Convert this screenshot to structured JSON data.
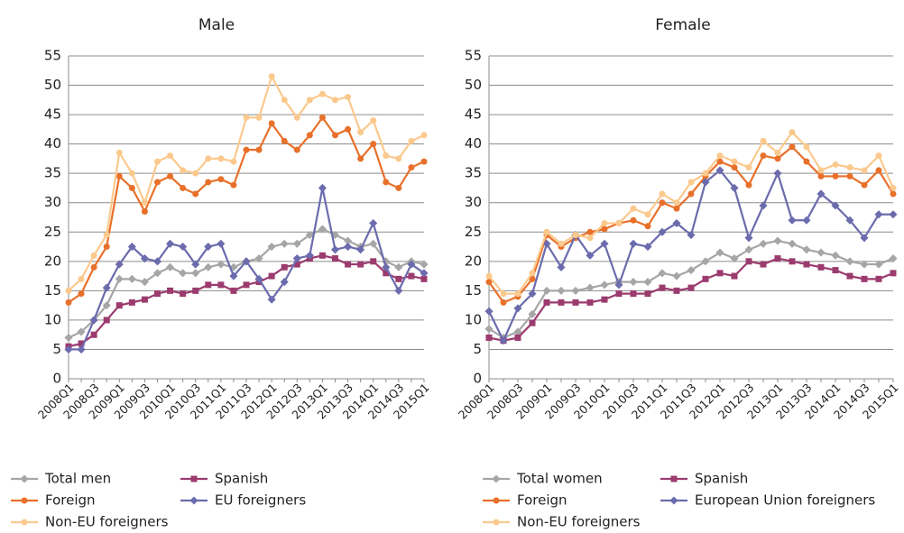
{
  "chart_data": [
    {
      "type": "line",
      "title": "Male",
      "categories": [
        "2008Q1",
        null,
        "2008Q3",
        null,
        "2009Q1",
        null,
        "2009Q3",
        null,
        "2010Q1",
        null,
        "2010Q3",
        null,
        "2011Q1",
        null,
        "2011Q3",
        null,
        "2012Q1",
        null,
        "2012Q3",
        null,
        "2013Q1",
        null,
        "2013Q3",
        null,
        "2014Q1",
        null,
        "2014Q3",
        null,
        "2015Q1"
      ],
      "ylim": [
        0,
        55
      ],
      "yticks": [
        0,
        5,
        10,
        15,
        20,
        25,
        30,
        35,
        40,
        45,
        50,
        55
      ],
      "grid": true,
      "series": [
        {
          "name": "Total men",
          "color": "#a6a6a6",
          "marker": "diamond",
          "values": [
            7,
            8,
            10,
            12.5,
            17,
            17,
            16.5,
            18,
            19,
            18,
            18,
            19,
            19.5,
            19,
            20,
            20.5,
            22.5,
            23,
            23,
            24.5,
            25.5,
            24.5,
            23.5,
            22.5,
            23,
            20,
            19,
            20,
            19.5
          ]
        },
        {
          "name": "Spanish",
          "color": "#9b3b6e",
          "marker": "square",
          "values": [
            5.5,
            6,
            7.5,
            10,
            12.5,
            13,
            13.5,
            14.5,
            15,
            14.5,
            15,
            16,
            16,
            15,
            16,
            16.5,
            17.5,
            19,
            19.5,
            20.5,
            21,
            20.5,
            19.5,
            19.5,
            20,
            18,
            17,
            17.5,
            17
          ]
        },
        {
          "name": "Foreign",
          "color": "#e8702a",
          "marker": "circle",
          "values": [
            13,
            14.5,
            19,
            22.5,
            34.5,
            32.5,
            28.5,
            33.5,
            34.5,
            32.5,
            31.5,
            33.5,
            34,
            33,
            39,
            39,
            43.5,
            40.5,
            39,
            41.5,
            44.5,
            41.5,
            42.5,
            37.5,
            40,
            33.5,
            32.5,
            36,
            37
          ]
        },
        {
          "name": "EU foreigners",
          "color": "#6b6bad",
          "marker": "diamond",
          "values": [
            5,
            5,
            10,
            15.5,
            19.5,
            22.5,
            20.5,
            20,
            23,
            22.5,
            19.5,
            22.5,
            23,
            17.5,
            20,
            17,
            13.5,
            16.5,
            20.5,
            21,
            32.5,
            22,
            22.5,
            22,
            26.5,
            19,
            15,
            19.5,
            18
          ]
        },
        {
          "name": "Non-EU foreigners",
          "color": "#fbc98d",
          "marker": "circle",
          "values": [
            15,
            17,
            21,
            24.5,
            38.5,
            35,
            30,
            37,
            38,
            35.5,
            35,
            37.5,
            37.5,
            37,
            44.5,
            44.5,
            51.5,
            47.5,
            44.5,
            47.5,
            48.5,
            47.5,
            48,
            42,
            44,
            38,
            37.5,
            40.5,
            41.5
          ]
        }
      ]
    },
    {
      "type": "line",
      "title": "Female",
      "categories": [
        "2008Q1",
        null,
        "2008Q3",
        null,
        "2009Q1",
        null,
        "2009Q3",
        null,
        "2010Q1",
        null,
        "2010Q3",
        null,
        "2011Q1",
        null,
        "2011Q3",
        null,
        "2012Q1",
        null,
        "2012Q3",
        null,
        "2013Q1",
        null,
        "2013Q3",
        null,
        "2014Q1",
        null,
        "2014Q3",
        null,
        "2015Q1"
      ],
      "ylim": [
        0,
        55
      ],
      "yticks": [
        0,
        5,
        10,
        15,
        20,
        25,
        30,
        35,
        40,
        45,
        50,
        55
      ],
      "grid": true,
      "series": [
        {
          "name": "Total women",
          "color": "#a6a6a6",
          "marker": "diamond",
          "values": [
            8.5,
            7,
            8,
            11,
            15,
            15,
            15,
            15.5,
            16,
            16.5,
            16.5,
            16.5,
            18,
            17.5,
            18.5,
            20,
            21.5,
            20.5,
            22,
            23,
            23.5,
            23,
            22,
            21.5,
            21,
            20,
            19.5,
            19.5,
            20.5
          ]
        },
        {
          "name": "Spanish",
          "color": "#9b3b6e",
          "marker": "square",
          "values": [
            7,
            6.5,
            7,
            9.5,
            13,
            13,
            13,
            13,
            13.5,
            14.5,
            14.5,
            14.5,
            15.5,
            15,
            15.5,
            17,
            18,
            17.5,
            20,
            19.5,
            20.5,
            20,
            19.5,
            19,
            18.5,
            17.5,
            17,
            17,
            18
          ]
        },
        {
          "name": "Foreign",
          "color": "#e8702a",
          "marker": "circle",
          "values": [
            16.5,
            13,
            14,
            17,
            24.5,
            22.5,
            24,
            25,
            25.5,
            26.5,
            27,
            26,
            30,
            29,
            31.5,
            34.5,
            37,
            36,
            33,
            38,
            37.5,
            39.5,
            37,
            34.5,
            34.5,
            34.5,
            33,
            35.5,
            31.5
          ]
        },
        {
          "name": "European Union foreigners",
          "color": "#6b6bad",
          "marker": "diamond",
          "values": [
            11.5,
            6.5,
            12,
            14.5,
            23,
            19,
            24.5,
            21,
            23,
            16,
            23,
            22.5,
            25,
            26.5,
            24.5,
            33.5,
            35.5,
            32.5,
            24,
            29.5,
            35,
            27,
            27,
            31.5,
            29.5,
            27,
            24,
            28,
            28
          ]
        },
        {
          "name": "Non-EU foreigners",
          "color": "#fbc98d",
          "marker": "circle",
          "values": [
            17.5,
            14.5,
            14.5,
            18,
            25,
            23,
            24.5,
            24,
            26.5,
            26.5,
            29,
            28,
            31.5,
            30,
            33.5,
            35,
            38,
            37,
            36,
            40.5,
            38.5,
            42,
            39.5,
            35.5,
            36.5,
            36,
            35.5,
            38,
            32.5
          ]
        }
      ]
    }
  ]
}
